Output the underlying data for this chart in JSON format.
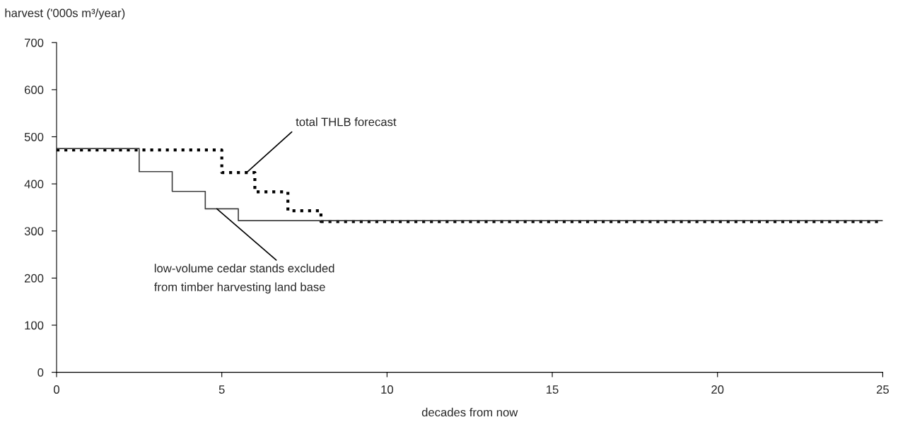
{
  "chart_data": {
    "type": "step",
    "xlabel": "decades from now",
    "ylabel": "harvest ('000s m³/year)",
    "xlim": [
      0,
      25
    ],
    "xticks": [
      0,
      5,
      10,
      15,
      20,
      25
    ],
    "ylim": [
      0,
      700
    ],
    "yticks": [
      0,
      100,
      200,
      300,
      400,
      500,
      600,
      700
    ],
    "grid": false,
    "legend": false,
    "series": [
      {
        "color": "#000000",
        "line_style": "dotted",
        "x": [
          0,
          5,
          6,
          7,
          8,
          25
        ],
        "values": [
          472,
          424,
          383,
          343,
          320,
          320
        ]
      },
      {
        "color": "#404040",
        "line_style": "solid",
        "x": [
          0,
          2.5,
          3.5,
          4.5,
          5.5,
          25
        ],
        "values": [
          475,
          426,
          384,
          347,
          322,
          322
        ]
      }
    ],
    "annotations": [
      {
        "text": "total THLB forecast",
        "x": 5.75,
        "y": 424
      },
      {
        "text": "low-volume cedar stands excluded\nfrom timber harvesting land base",
        "x": 4.85,
        "y": 347
      }
    ]
  }
}
